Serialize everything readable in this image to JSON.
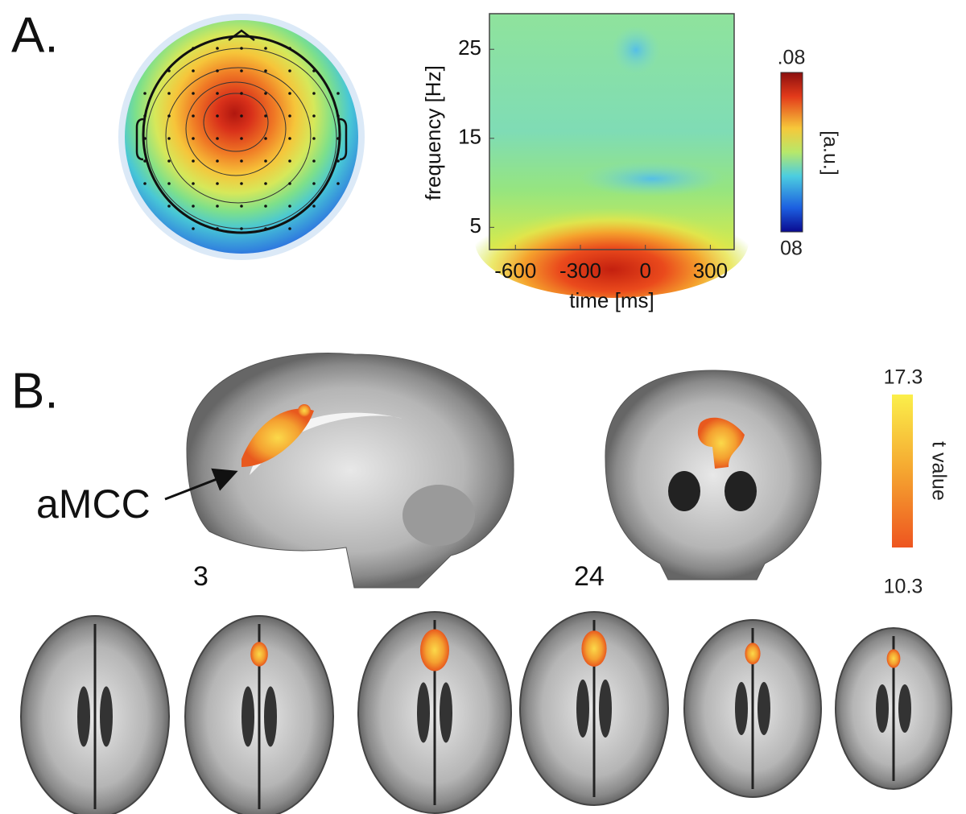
{
  "panel_a": {
    "label": "A.",
    "tf_plot": {
      "xlabel": "time [ms]",
      "ylabel": "frequency [Hz]",
      "xlim": [
        -720,
        410
      ],
      "xticks": [
        -600,
        -300,
        0,
        300
      ],
      "ylim": [
        2.5,
        29
      ],
      "yticks": [
        5,
        15,
        25
      ]
    },
    "colorbar": {
      "max_label": ".08",
      "min_label": "08",
      "label": "[a.u.]"
    }
  },
  "panel_b": {
    "label": "B.",
    "annotation": "aMCC",
    "slices": [
      3,
      24
    ],
    "colorbar": {
      "max": 17.3,
      "min": 10.3,
      "label": "t value"
    }
  }
}
